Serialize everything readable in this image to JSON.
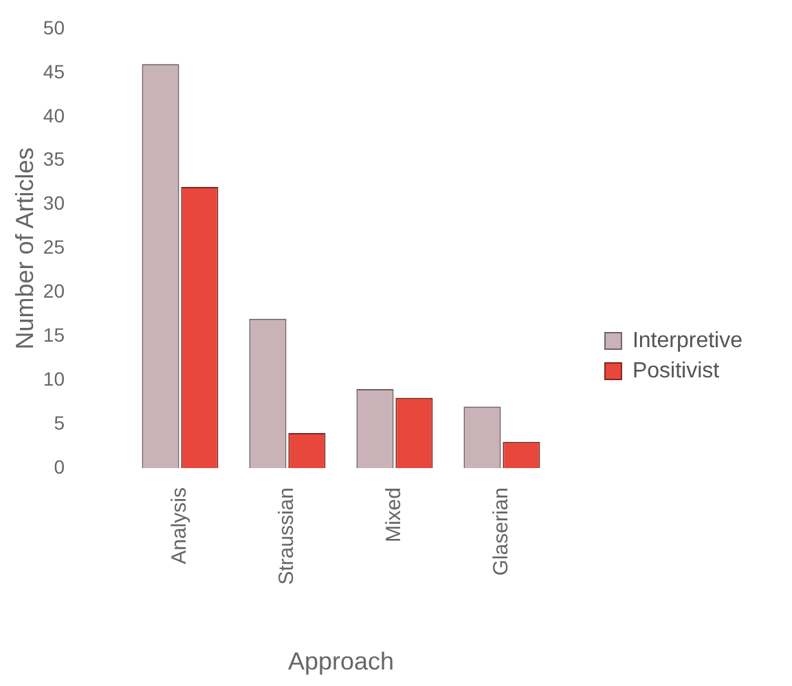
{
  "chart_data": {
    "type": "bar",
    "xlabel": "Approach",
    "ylabel": "Number of Articles",
    "categories": [
      "Analysis",
      "Straussian",
      "Mixed",
      "Glaserian"
    ],
    "series": [
      {
        "name": "Interpretive",
        "color": "#c9b3b8",
        "values": [
          46,
          17,
          9,
          7
        ]
      },
      {
        "name": "Positivist",
        "color": "#e8473b",
        "values": [
          32,
          4,
          8,
          3
        ]
      }
    ],
    "ylim": [
      0,
      50
    ],
    "yticks": [
      0,
      5,
      10,
      15,
      20,
      25,
      30,
      35,
      40,
      45,
      50
    ],
    "grid": false,
    "legend": "right"
  }
}
